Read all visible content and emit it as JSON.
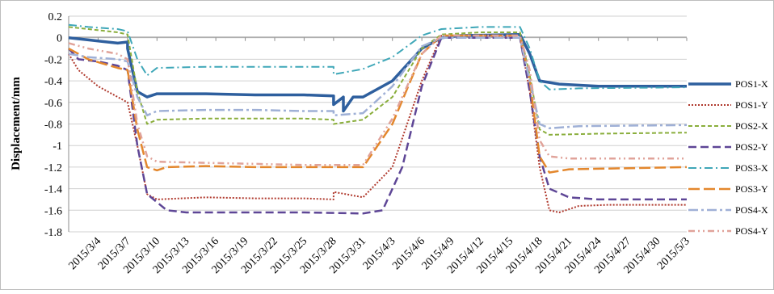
{
  "chart_data": {
    "type": "line",
    "title": "",
    "xlabel": "",
    "ylabel": "Displacement/mm",
    "ylim": [
      -1.8,
      0.2
    ],
    "yticks": [
      0.2,
      0,
      -0.2,
      -0.4,
      -0.6,
      -0.8,
      -1,
      -1.2,
      -1.4,
      -1.6,
      -1.8
    ],
    "ytick_labels": [
      "0.2",
      "0",
      "-0.2",
      "-0.4",
      "-0.6",
      "-0.8",
      "-1",
      "-1.2",
      "-1.4",
      "-1.6",
      "-1.8"
    ],
    "xlim": [
      "2015/3/1",
      "2015/5/3"
    ],
    "xtick_labels": [
      "2015/3/4",
      "2015/3/7",
      "2015/3/10",
      "2015/3/13",
      "2015/3/16",
      "2015/3/19",
      "2015/3/22",
      "2015/3/25",
      "2015/3/28",
      "2015/3/31",
      "2015/4/3",
      "2015/4/6",
      "2015/4/9",
      "2015/4/12",
      "2015/4/15",
      "2015/4/18",
      "2015/4/21",
      "2015/4/24",
      "2015/4/27",
      "2015/4/30",
      "2015/5/3"
    ],
    "grid": "horizontal",
    "legend_position": "right",
    "series": [
      {
        "name": "POS1-X",
        "color": "#2e5f9e",
        "dash": "solid",
        "width": 3.5,
        "points": [
          [
            "2015/3/1",
            0.0
          ],
          [
            "2015/3/3",
            -0.02
          ],
          [
            "2015/3/6",
            -0.05
          ],
          [
            "2015/3/7",
            -0.04
          ],
          [
            "2015/3/7",
            -0.1
          ],
          [
            "2015/3/8",
            -0.5
          ],
          [
            "2015/3/9",
            -0.55
          ],
          [
            "2015/3/10",
            -0.52
          ],
          [
            "2015/3/15",
            -0.52
          ],
          [
            "2015/3/20",
            -0.53
          ],
          [
            "2015/3/25",
            -0.53
          ],
          [
            "2015/3/28",
            -0.54
          ],
          [
            "2015/3/28",
            -0.62
          ],
          [
            "2015/3/29",
            -0.55
          ],
          [
            "2015/3/29",
            -0.68
          ],
          [
            "2015/3/30",
            -0.55
          ],
          [
            "2015/3/31",
            -0.55
          ],
          [
            "2015/4/3",
            -0.4
          ],
          [
            "2015/4/6",
            -0.1
          ],
          [
            "2015/4/8",
            0.0
          ],
          [
            "2015/4/10",
            0.02
          ],
          [
            "2015/4/16",
            0.03
          ],
          [
            "2015/4/17",
            -0.15
          ],
          [
            "2015/4/18",
            -0.4
          ],
          [
            "2015/4/20",
            -0.43
          ],
          [
            "2015/4/24",
            -0.45
          ],
          [
            "2015/5/3",
            -0.45
          ]
        ]
      },
      {
        "name": "POS1-Y",
        "color": "#b03a2e",
        "dash": "dotted",
        "width": 2,
        "points": [
          [
            "2015/3/1",
            -0.15
          ],
          [
            "2015/3/2",
            -0.3
          ],
          [
            "2015/3/4",
            -0.45
          ],
          [
            "2015/3/6",
            -0.55
          ],
          [
            "2015/3/7",
            -0.6
          ],
          [
            "2015/3/8",
            -1.0
          ],
          [
            "2015/3/9",
            -1.45
          ],
          [
            "2015/3/10",
            -1.5
          ],
          [
            "2015/3/15",
            -1.48
          ],
          [
            "2015/3/20",
            -1.49
          ],
          [
            "2015/3/25",
            -1.49
          ],
          [
            "2015/3/28",
            -1.5
          ],
          [
            "2015/3/28",
            -1.43
          ],
          [
            "2015/3/31",
            -1.48
          ],
          [
            "2015/4/3",
            -1.2
          ],
          [
            "2015/4/6",
            -0.4
          ],
          [
            "2015/4/8",
            0.02
          ],
          [
            "2015/4/12",
            0.02
          ],
          [
            "2015/4/16",
            0.0
          ],
          [
            "2015/4/17",
            -0.5
          ],
          [
            "2015/4/18",
            -1.2
          ],
          [
            "2015/4/19",
            -1.6
          ],
          [
            "2015/4/20",
            -1.62
          ],
          [
            "2015/4/22",
            -1.56
          ],
          [
            "2015/4/25",
            -1.55
          ],
          [
            "2015/5/3",
            -1.55
          ]
        ]
      },
      {
        "name": "POS2-X",
        "color": "#8aae3c",
        "dash": "5,3",
        "width": 2,
        "points": [
          [
            "2015/3/1",
            0.1
          ],
          [
            "2015/3/3",
            0.08
          ],
          [
            "2015/3/6",
            0.05
          ],
          [
            "2015/3/7",
            0.03
          ],
          [
            "2015/3/8",
            -0.5
          ],
          [
            "2015/3/9",
            -0.8
          ],
          [
            "2015/3/10",
            -0.76
          ],
          [
            "2015/3/15",
            -0.75
          ],
          [
            "2015/3/20",
            -0.75
          ],
          [
            "2015/3/25",
            -0.75
          ],
          [
            "2015/3/28",
            -0.76
          ],
          [
            "2015/3/28",
            -0.8
          ],
          [
            "2015/3/31",
            -0.76
          ],
          [
            "2015/4/3",
            -0.55
          ],
          [
            "2015/4/6",
            -0.1
          ],
          [
            "2015/4/8",
            0.03
          ],
          [
            "2015/4/12",
            0.05
          ],
          [
            "2015/4/16",
            0.05
          ],
          [
            "2015/4/17",
            -0.35
          ],
          [
            "2015/4/18",
            -0.85
          ],
          [
            "2015/4/19",
            -0.9
          ],
          [
            "2015/4/24",
            -0.89
          ],
          [
            "2015/5/3",
            -0.88
          ]
        ]
      },
      {
        "name": "POS2-Y",
        "color": "#5e4696",
        "dash": "10,5",
        "width": 2.5,
        "points": [
          [
            "2015/3/1",
            -0.1
          ],
          [
            "2015/3/2",
            -0.2
          ],
          [
            "2015/3/4",
            -0.22
          ],
          [
            "2015/3/6",
            -0.26
          ],
          [
            "2015/3/7",
            -0.3
          ],
          [
            "2015/3/8",
            -1.0
          ],
          [
            "2015/3/9",
            -1.45
          ],
          [
            "2015/3/11",
            -1.6
          ],
          [
            "2015/3/13",
            -1.62
          ],
          [
            "2015/3/20",
            -1.62
          ],
          [
            "2015/3/25",
            -1.62
          ],
          [
            "2015/3/31",
            -1.63
          ],
          [
            "2015/4/2",
            -1.6
          ],
          [
            "2015/4/4",
            -1.2
          ],
          [
            "2015/4/6",
            -0.45
          ],
          [
            "2015/4/8",
            0.0
          ],
          [
            "2015/4/12",
            0.0
          ],
          [
            "2015/4/16",
            0.0
          ],
          [
            "2015/4/17",
            -0.5
          ],
          [
            "2015/4/18",
            -1.1
          ],
          [
            "2015/4/19",
            -1.4
          ],
          [
            "2015/4/21",
            -1.48
          ],
          [
            "2015/4/24",
            -1.5
          ],
          [
            "2015/5/3",
            -1.5
          ]
        ]
      },
      {
        "name": "POS3-X",
        "color": "#3fa7b8",
        "dash": "10,4,2,4",
        "width": 2,
        "points": [
          [
            "2015/3/1",
            0.12
          ],
          [
            "2015/3/3",
            0.1
          ],
          [
            "2015/3/6",
            0.08
          ],
          [
            "2015/3/7",
            0.06
          ],
          [
            "2015/3/8",
            -0.2
          ],
          [
            "2015/3/9",
            -0.35
          ],
          [
            "2015/3/10",
            -0.28
          ],
          [
            "2015/3/15",
            -0.27
          ],
          [
            "2015/3/20",
            -0.27
          ],
          [
            "2015/3/25",
            -0.27
          ],
          [
            "2015/3/28",
            -0.27
          ],
          [
            "2015/3/28",
            -0.34
          ],
          [
            "2015/3/31",
            -0.29
          ],
          [
            "2015/4/3",
            -0.18
          ],
          [
            "2015/4/6",
            0.02
          ],
          [
            "2015/4/8",
            0.08
          ],
          [
            "2015/4/12",
            0.1
          ],
          [
            "2015/4/16",
            0.1
          ],
          [
            "2015/4/17",
            -0.1
          ],
          [
            "2015/4/18",
            -0.4
          ],
          [
            "2015/4/19",
            -0.48
          ],
          [
            "2015/4/22",
            -0.47
          ],
          [
            "2015/5/3",
            -0.46
          ]
        ]
      },
      {
        "name": "POS3-Y",
        "color": "#e3872d",
        "dash": "14,5",
        "width": 2.5,
        "points": [
          [
            "2015/3/1",
            -0.1
          ],
          [
            "2015/3/3",
            -0.2
          ],
          [
            "2015/3/6",
            -0.28
          ],
          [
            "2015/3/7",
            -0.3
          ],
          [
            "2015/3/8",
            -0.85
          ],
          [
            "2015/3/9",
            -1.2
          ],
          [
            "2015/3/10",
            -1.23
          ],
          [
            "2015/3/11",
            -1.2
          ],
          [
            "2015/3/15",
            -1.19
          ],
          [
            "2015/3/20",
            -1.2
          ],
          [
            "2015/3/25",
            -1.2
          ],
          [
            "2015/3/31",
            -1.2
          ],
          [
            "2015/4/3",
            -0.8
          ],
          [
            "2015/4/6",
            -0.15
          ],
          [
            "2015/4/8",
            0.02
          ],
          [
            "2015/4/12",
            0.02
          ],
          [
            "2015/4/16",
            0.02
          ],
          [
            "2015/4/17",
            -0.4
          ],
          [
            "2015/4/18",
            -1.1
          ],
          [
            "2015/4/19",
            -1.25
          ],
          [
            "2015/4/21",
            -1.22
          ],
          [
            "2015/5/3",
            -1.2
          ]
        ]
      },
      {
        "name": "POS4-X",
        "color": "#9fb0d6",
        "dash": "12,4,3,4",
        "width": 2.5,
        "points": [
          [
            "2015/3/1",
            -0.15
          ],
          [
            "2015/3/3",
            -0.18
          ],
          [
            "2015/3/6",
            -0.2
          ],
          [
            "2015/3/7",
            -0.22
          ],
          [
            "2015/3/8",
            -0.55
          ],
          [
            "2015/3/9",
            -0.72
          ],
          [
            "2015/3/10",
            -0.68
          ],
          [
            "2015/3/15",
            -0.67
          ],
          [
            "2015/3/20",
            -0.67
          ],
          [
            "2015/3/25",
            -0.68
          ],
          [
            "2015/3/28",
            -0.68
          ],
          [
            "2015/3/28",
            -0.72
          ],
          [
            "2015/3/31",
            -0.7
          ],
          [
            "2015/4/3",
            -0.45
          ],
          [
            "2015/4/6",
            -0.08
          ],
          [
            "2015/4/8",
            0.0
          ],
          [
            "2015/4/12",
            0.0
          ],
          [
            "2015/4/16",
            0.0
          ],
          [
            "2015/4/17",
            -0.4
          ],
          [
            "2015/4/18",
            -0.8
          ],
          [
            "2015/4/19",
            -0.84
          ],
          [
            "2015/4/22",
            -0.82
          ],
          [
            "2015/5/3",
            -0.81
          ]
        ]
      },
      {
        "name": "POS4-Y",
        "color": "#e0a39a",
        "dash": "8,4,2,4,2,4",
        "width": 2.5,
        "points": [
          [
            "2015/3/1",
            -0.05
          ],
          [
            "2015/3/3",
            -0.1
          ],
          [
            "2015/3/6",
            -0.15
          ],
          [
            "2015/3/7",
            -0.2
          ],
          [
            "2015/3/8",
            -0.8
          ],
          [
            "2015/3/9",
            -1.1
          ],
          [
            "2015/3/10",
            -1.15
          ],
          [
            "2015/3/15",
            -1.16
          ],
          [
            "2015/3/20",
            -1.17
          ],
          [
            "2015/3/25",
            -1.18
          ],
          [
            "2015/3/31",
            -1.18
          ],
          [
            "2015/4/3",
            -0.75
          ],
          [
            "2015/4/6",
            -0.15
          ],
          [
            "2015/4/8",
            0.02
          ],
          [
            "2015/4/12",
            0.02
          ],
          [
            "2015/4/16",
            0.02
          ],
          [
            "2015/4/17",
            -0.3
          ],
          [
            "2015/4/18",
            -0.95
          ],
          [
            "2015/4/19",
            -1.1
          ],
          [
            "2015/4/21",
            -1.12
          ],
          [
            "2015/5/3",
            -1.12
          ]
        ]
      }
    ]
  }
}
